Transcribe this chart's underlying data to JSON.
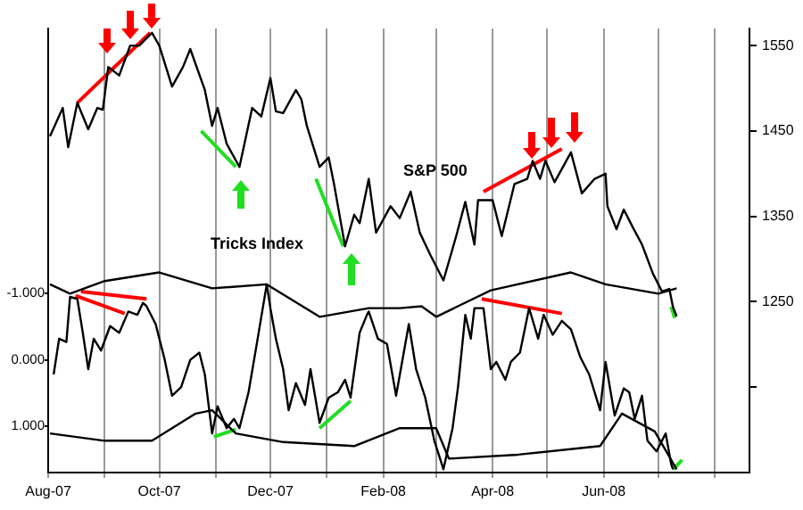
{
  "chart_data": {
    "type": "line",
    "xlim": [
      "2007-08-01",
      "2008-08-20"
    ],
    "xticks": [
      {
        "value": "2007-08-01",
        "label": "Aug-07"
      },
      {
        "value": "2007-09-01",
        "label": null
      },
      {
        "value": "2007-10-01",
        "label": "Oct-07"
      },
      {
        "value": "2007-11-01",
        "label": null
      },
      {
        "value": "2007-12-01",
        "label": "Dec-07"
      },
      {
        "value": "2008-01-01",
        "label": null
      },
      {
        "value": "2008-02-01",
        "label": "Feb-08"
      },
      {
        "value": "2008-03-01",
        "label": null
      },
      {
        "value": "2008-04-01",
        "label": "Apr-08"
      },
      {
        "value": "2008-05-01",
        "label": null
      },
      {
        "value": "2008-06-01",
        "label": "Jun-08"
      },
      {
        "value": "2008-07-01",
        "label": null
      },
      {
        "value": "2008-08-01",
        "label": null
      }
    ],
    "ylim": [
      1050,
      1570
    ],
    "yticks": [
      {
        "value": 1150,
        "label": null
      },
      1250,
      1350,
      1450,
      1550
    ],
    "y2lim": [
      1.7,
      -5.0
    ],
    "y2ticks": [
      {
        "value": -1,
        "label": "-1.000"
      },
      {
        "value": 0,
        "label": "0.000"
      },
      {
        "value": 1,
        "label": "1.000"
      }
    ],
    "grid": "x",
    "legend": false,
    "marker": "none",
    "line_style": "solid",
    "series": [
      {
        "name": "S&P 500",
        "color": "#000000",
        "x": [
          "2007-08-02",
          "2007-08-09",
          "2007-08-12",
          "2007-08-17",
          "2007-08-23",
          "2007-08-28",
          "2007-08-31",
          "2007-09-03",
          "2007-09-09",
          "2007-09-15",
          "2007-09-20",
          "2007-09-27",
          "2007-10-01",
          "2007-10-08",
          "2007-10-14",
          "2007-10-18",
          "2007-10-26",
          "2007-10-30",
          "2007-11-02",
          "2007-11-07",
          "2007-11-14",
          "2007-11-21",
          "2007-11-26",
          "2007-12-01",
          "2007-12-04",
          "2007-12-08",
          "2007-12-15",
          "2007-12-18",
          "2007-12-21",
          "2007-12-28",
          "2008-01-02",
          "2008-01-05",
          "2008-01-11",
          "2008-01-16",
          "2008-01-19",
          "2008-01-24",
          "2008-01-28",
          "2008-02-05",
          "2008-02-10",
          "2008-02-16",
          "2008-02-21",
          "2008-02-27",
          "2008-03-05",
          "2008-03-12",
          "2008-03-17",
          "2008-03-22",
          "2008-03-24",
          "2008-04-01",
          "2008-04-06",
          "2008-04-13",
          "2008-04-20",
          "2008-04-23",
          "2008-04-27",
          "2008-04-30",
          "2008-05-05",
          "2008-05-14",
          "2008-05-20",
          "2008-05-27",
          "2008-06-02",
          "2008-06-03",
          "2008-06-08",
          "2008-06-12",
          "2008-06-17",
          "2008-06-22",
          "2008-06-28",
          "2008-07-03",
          "2008-07-07",
          "2008-07-09",
          "2008-07-11"
        ],
        "values": [
          1444,
          1477,
          1431,
          1483,
          1452,
          1477,
          1475,
          1525,
          1515,
          1550,
          1550,
          1565,
          1550,
          1502,
          1525,
          1546,
          1498,
          1456,
          1477,
          1435,
          1408,
          1477,
          1467,
          1512,
          1473,
          1471,
          1498,
          1487,
          1456,
          1408,
          1419,
          1387,
          1315,
          1352,
          1342,
          1394,
          1331,
          1362,
          1348,
          1379,
          1331,
          1304,
          1275,
          1327,
          1367,
          1317,
          1369,
          1369,
          1327,
          1388,
          1394,
          1415,
          1394,
          1415,
          1390,
          1425,
          1377,
          1394,
          1400,
          1362,
          1335,
          1358,
          1337,
          1317,
          1283,
          1262,
          1265,
          1244,
          1233
        ]
      },
      {
        "name": "Tricks Index",
        "color": "#000000",
        "axis": "y2",
        "x": [
          "2007-08-04",
          "2007-08-07",
          "2007-08-11",
          "2007-08-13",
          "2007-08-17",
          "2007-08-20",
          "2007-08-23",
          "2007-08-26",
          "2007-08-30",
          "2007-09-04",
          "2007-09-09",
          "2007-09-14",
          "2007-09-19",
          "2007-09-22",
          "2007-09-24",
          "2007-09-29",
          "2007-10-04",
          "2007-10-08",
          "2007-10-13",
          "2007-10-18",
          "2007-10-23",
          "2007-10-26",
          "2007-10-30",
          "2007-11-02",
          "2007-11-07",
          "2007-11-11",
          "2007-11-14",
          "2007-11-19",
          "2007-11-24",
          "2007-11-29",
          "2007-12-01",
          "2007-12-04",
          "2007-12-08",
          "2007-12-11",
          "2007-12-15",
          "2007-12-20",
          "2007-12-23",
          "2007-12-28",
          "2008-01-02",
          "2008-01-07",
          "2008-01-11",
          "2008-01-14",
          "2008-01-19",
          "2008-01-23",
          "2008-01-24",
          "2008-01-29",
          "2008-02-03",
          "2008-02-08",
          "2008-02-15",
          "2008-02-19",
          "2008-02-24",
          "2008-02-29",
          "2008-03-05",
          "2008-03-10",
          "2008-03-13",
          "2008-03-17",
          "2008-03-20",
          "2008-03-22",
          "2008-03-27",
          "2008-03-31",
          "2008-04-03",
          "2008-04-08",
          "2008-04-11",
          "2008-04-16",
          "2008-04-21",
          "2008-04-26",
          "2008-04-29",
          "2008-05-04",
          "2008-05-09",
          "2008-05-14",
          "2008-05-19",
          "2008-05-24",
          "2008-05-30",
          "2008-06-02",
          "2008-06-07",
          "2008-06-12",
          "2008-06-15",
          "2008-06-18",
          "2008-06-22",
          "2008-06-25",
          "2008-06-30",
          "2008-07-05",
          "2008-07-08",
          "2008-07-09"
        ],
        "values": [
          0.22,
          -0.32,
          -0.27,
          -0.95,
          -0.92,
          -0.41,
          0.14,
          -0.32,
          -0.14,
          -0.51,
          -0.41,
          -0.73,
          -0.68,
          -0.86,
          -0.81,
          -0.54,
          0,
          0.54,
          0.41,
          0,
          -0.11,
          0.22,
          1.11,
          0.7,
          1.03,
          0.89,
          1.03,
          0.49,
          -0.32,
          -1.14,
          -0.78,
          -0.32,
          0.14,
          0.76,
          0.35,
          0.68,
          0.14,
          0.95,
          0.57,
          0.49,
          0.3,
          0.57,
          -0.41,
          -0.68,
          -0.73,
          -0.32,
          -0.24,
          0.54,
          -0.54,
          0.14,
          0.57,
          1.22,
          1.65,
          1.03,
          0.41,
          -0.68,
          -0.32,
          -0.78,
          -0.78,
          0.14,
          0.03,
          0.3,
          0.03,
          -0.11,
          -0.78,
          -0.32,
          -0.68,
          -0.38,
          -0.59,
          -0.46,
          -0.05,
          0.22,
          0.76,
          0.03,
          0.84,
          0.43,
          0.49,
          0.89,
          0.54,
          1.22,
          1.38,
          1.11,
          1.57,
          1.65
        ]
      },
      {
        "color": "#000000",
        "axis": "y2",
        "x": [
          "2007-08-02",
          "2007-08-13",
          "2007-09-01",
          "2007-10-01",
          "2007-10-30",
          "2007-11-29",
          "2007-12-28",
          "2008-01-24",
          "2008-02-10",
          "2008-02-22",
          "2008-03-01",
          "2008-03-31",
          "2008-05-14",
          "2008-06-02",
          "2008-07-01",
          "2008-07-11"
        ],
        "values": [
          -1.14,
          -1.0,
          -1.19,
          -1.32,
          -1.08,
          -1.14,
          -0.65,
          -0.78,
          -0.78,
          -0.81,
          -0.65,
          -1.05,
          -1.32,
          -1.14,
          -1.0,
          -1.08
        ]
      },
      {
        "color": "#000000",
        "axis": "y2",
        "x": [
          "2007-08-02",
          "2007-09-01",
          "2007-09-27",
          "2007-10-21",
          "2007-10-30",
          "2007-11-12",
          "2007-12-08",
          "2008-01-16",
          "2008-02-10",
          "2008-03-01",
          "2008-03-08",
          "2008-04-15",
          "2008-05-30",
          "2008-06-11",
          "2008-06-29",
          "2008-07-11"
        ],
        "values": [
          1.11,
          1.22,
          1.22,
          0.81,
          0.76,
          1.11,
          1.24,
          1.3,
          1.03,
          1.03,
          1.49,
          1.43,
          1.3,
          0.81,
          1.08,
          1.65
        ]
      },
      {
        "color": "#ff0000",
        "x": [
          "2007-08-17",
          "2007-09-26"
        ],
        "values": [
          1483,
          1565
        ]
      },
      {
        "color": "#22dd22",
        "x": [
          "2007-10-24",
          "2007-11-12"
        ],
        "values": [
          1450,
          1408
        ]
      },
      {
        "color": "#22dd22",
        "x": [
          "2007-12-26",
          "2008-01-10"
        ],
        "values": [
          1394,
          1315
        ]
      },
      {
        "color": "#ff0000",
        "x": [
          "2008-03-27",
          "2008-05-09"
        ],
        "values": [
          1379,
          1429
        ]
      },
      {
        "color": "#22dd22",
        "x": [
          "2008-07-08",
          "2008-07-10"
        ],
        "values": [
          1244,
          1231
        ]
      },
      {
        "color": "#ff0000",
        "axis": "y2",
        "x": [
          "2007-08-16",
          "2007-09-12"
        ],
        "values": [
          -0.97,
          -0.7
        ]
      },
      {
        "color": "#ff0000",
        "axis": "y2",
        "x": [
          "2007-08-19",
          "2007-09-24"
        ],
        "values": [
          -1.03,
          -0.92
        ]
      },
      {
        "color": "#ff0000",
        "axis": "y2",
        "x": [
          "2008-03-26",
          "2008-05-09"
        ],
        "values": [
          -0.92,
          -0.7
        ]
      },
      {
        "color": "#22dd22",
        "axis": "y2",
        "x": [
          "2007-10-31",
          "2007-11-12"
        ],
        "values": [
          1.16,
          1.05
        ]
      },
      {
        "color": "#22dd22",
        "axis": "y2",
        "x": [
          "2007-12-28",
          "2008-01-14"
        ],
        "values": [
          1.03,
          0.62
        ]
      },
      {
        "color": "#22dd22",
        "axis": "y2",
        "x": [
          "2008-07-09",
          "2008-07-14"
        ],
        "values": [
          1.65,
          1.51
        ]
      }
    ]
  }
}
